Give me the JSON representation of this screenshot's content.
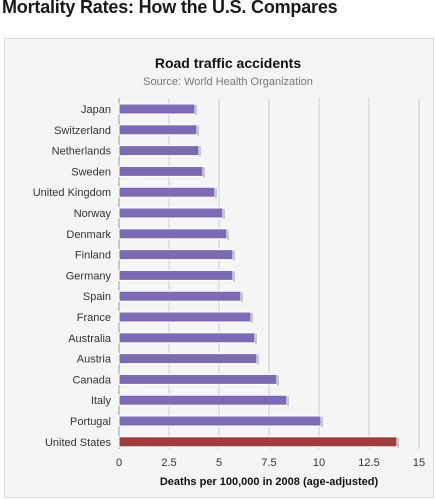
{
  "page": {
    "title": "Mortality Rates: How the U.S. Compares"
  },
  "colors": {
    "bar": "#7b6bb5",
    "highlight": "#a03c3c",
    "bar_border": "#ffffff",
    "grid": "#cfcfcf"
  },
  "chart_data": {
    "type": "bar",
    "orientation": "horizontal",
    "title": "Road traffic accidents",
    "subtitle": "Source: World Health Organization",
    "xlabel": "Deaths per 100,000 in 2008 (age-adjusted)",
    "ylabel": "",
    "xlim": [
      0,
      15
    ],
    "xticks": [
      "0",
      "2.5",
      "5",
      "7.5",
      "10",
      "12.5",
      "15"
    ],
    "grid": true,
    "legend": "none",
    "categories": [
      "Japan",
      "Switzerland",
      "Netherlands",
      "Sweden",
      "United Kingdom",
      "Norway",
      "Denmark",
      "Finland",
      "Germany",
      "Spain",
      "France",
      "Australia",
      "Austria",
      "Canada",
      "Italy",
      "Portugal",
      "United States"
    ],
    "values": [
      3.8,
      3.9,
      4.0,
      4.2,
      4.8,
      5.2,
      5.4,
      5.7,
      5.7,
      6.1,
      6.6,
      6.8,
      6.9,
      7.9,
      8.4,
      10.1,
      13.9
    ],
    "highlight": "United States"
  }
}
